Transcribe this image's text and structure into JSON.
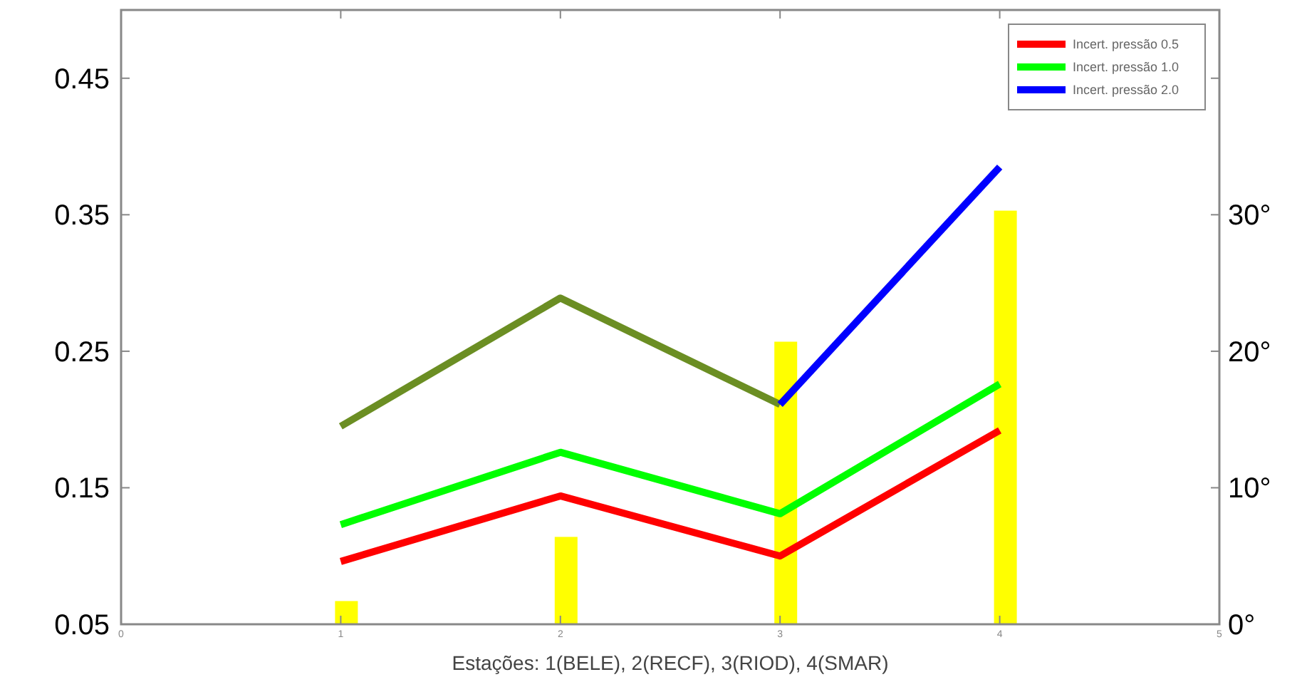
{
  "chart_data": {
    "type": "line",
    "xlabel": "Estações: 1(BELE), 2(RECF), 3(RIOD), 4(SMAR)",
    "x": [
      1,
      2,
      3,
      4
    ],
    "xlim": [
      0,
      5
    ],
    "xticks": [
      0,
      1,
      2,
      3,
      4,
      5
    ],
    "ylim": [
      0.05,
      0.5
    ],
    "yticks": [
      0.05,
      0.15,
      0.25,
      0.35,
      0.45
    ],
    "y2lim": [
      0,
      45
    ],
    "y2ticks": [
      {
        "value": 0,
        "label": "0°"
      },
      {
        "value": 10,
        "label": "10°"
      },
      {
        "value": 20,
        "label": "20°"
      },
      {
        "value": 30,
        "label": "30°"
      },
      {
        "value": 40,
        "label": null
      }
    ],
    "grid": false,
    "legend": "top right",
    "series": [
      {
        "type": "bar",
        "axis": "y2",
        "color": "#ffff00",
        "values": [
          1.7,
          6.4,
          20.7,
          30.3
        ]
      },
      {
        "name": "Incert. pressão 0.5",
        "color": "#ff0000",
        "values": [
          0.096,
          0.144,
          0.1,
          0.192
        ]
      },
      {
        "name": "Incert. pressão 1.0",
        "color": "#00ff00",
        "values": [
          0.123,
          0.176,
          0.131,
          0.226
        ]
      },
      {
        "color": "#6b8e23",
        "values": [
          0.195,
          0.289,
          0.211,
          null
        ]
      },
      {
        "name": "Incert. pressão 2.0",
        "color": "#0000ff",
        "values": [
          null,
          null,
          0.211,
          0.385
        ]
      }
    ]
  }
}
